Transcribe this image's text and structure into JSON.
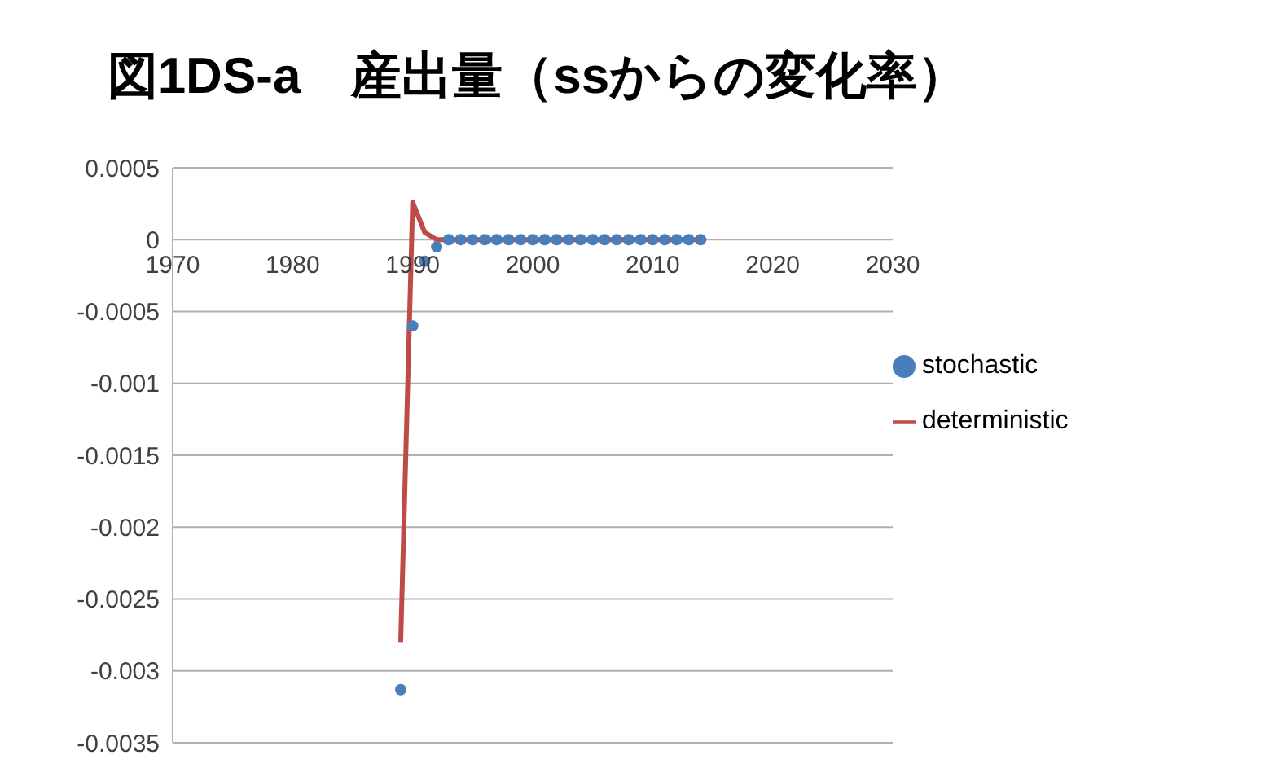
{
  "chart_data": {
    "type": "scatter",
    "title": "図1DS-a　産出量（ssからの変化率）",
    "x": [
      1989,
      1990,
      1991,
      1992,
      1993,
      1994,
      1995,
      1996,
      1997,
      1998,
      1999,
      2000,
      2001,
      2002,
      2003,
      2004,
      2005,
      2006,
      2007,
      2008,
      2009,
      2010,
      2011,
      2012,
      2013,
      2014
    ],
    "series": [
      {
        "name": "stochastic",
        "color": "#4a7ebb",
        "marker": "circle",
        "values": [
          -0.00313,
          -0.0006,
          -0.00015,
          -5e-05,
          0,
          0,
          0,
          0,
          0,
          0,
          0,
          0,
          0,
          0,
          0,
          0,
          0,
          0,
          0,
          0,
          0,
          0,
          0,
          0,
          0,
          0
        ]
      },
      {
        "name": "deterministic",
        "type": "line",
        "color": "#be4b48",
        "marker": "none",
        "values": [
          -0.0028,
          0.00026,
          5e-05,
          0,
          0,
          0,
          0,
          0,
          0,
          0,
          0,
          0,
          0,
          0,
          0,
          0,
          0,
          0,
          0,
          0,
          0,
          0,
          0,
          0,
          0,
          0
        ]
      }
    ],
    "xlim": [
      1970,
      2030
    ],
    "xticks": [
      1970,
      1980,
      1990,
      2000,
      2010,
      2020,
      2030
    ],
    "ylim": [
      -0.0035,
      0.0005
    ],
    "yticks": [
      0.0005,
      0,
      -0.0005,
      -0.001,
      -0.0015,
      -0.002,
      -0.0025,
      -0.003,
      -0.0035
    ],
    "grid": "y",
    "legend": "right"
  }
}
